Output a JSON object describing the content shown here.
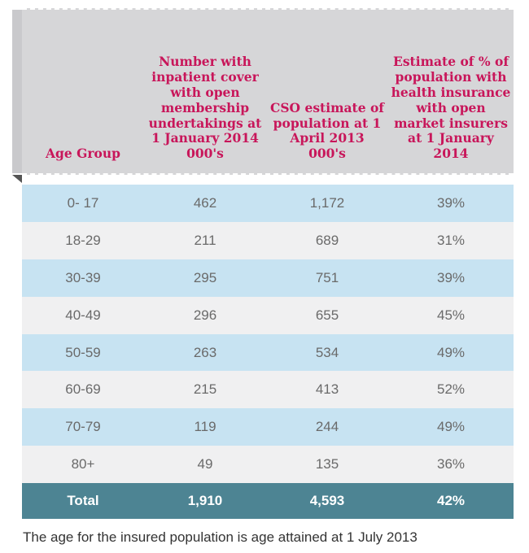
{
  "table": {
    "headers": [
      "Age Group",
      "Number with\ninpatient cover\nwith open\nmembership\nundertakings at\n1 January 2014\n000's",
      "CSO estimate of\npopulation at 1\nApril 2013\n000's",
      "Estimate of % of\npopulation with\nhealth insurance\nwith open\nmarket insurers\nat 1 January\n2014"
    ],
    "rows": [
      [
        "0- 17",
        "462",
        "1,172",
        "39%"
      ],
      [
        "18-29",
        "211",
        "689",
        "31%"
      ],
      [
        "30-39",
        "295",
        "751",
        "39%"
      ],
      [
        "40-49",
        "296",
        "655",
        "45%"
      ],
      [
        "50-59",
        "263",
        "534",
        "49%"
      ],
      [
        "60-69",
        "215",
        "413",
        "52%"
      ],
      [
        "70-79",
        "119",
        "244",
        "49%"
      ],
      [
        "80+",
        "49",
        "135",
        "36%"
      ]
    ],
    "total": [
      "Total",
      "1,910",
      "4,593",
      "42%"
    ]
  },
  "note": "The age for the insured population is age attained at 1 July 2013",
  "colors": {
    "header_bg": "#d6d6d8",
    "header_text": "#c8165a",
    "row_blue": "#c7e3f2",
    "row_grey": "#f0f0f1",
    "total_bg": "#4d8493"
  }
}
